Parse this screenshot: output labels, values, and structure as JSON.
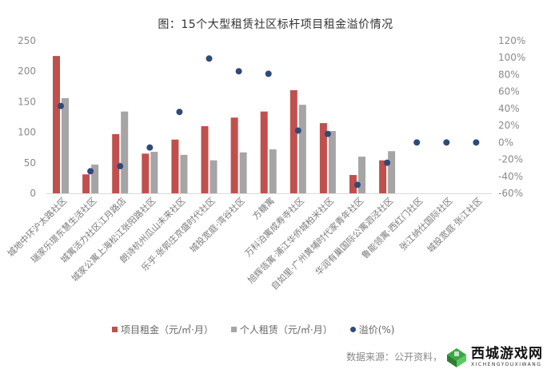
{
  "chart_data": {
    "type": "bar",
    "title": "图：15个大型租赁社区标杆项目租金溢价情况",
    "categories": [
      "城地中环沪太路社区",
      "瑞家乐璟东慧生活社区",
      "城寓活力社区江月路店",
      "城家公寓上海松江张阳路社区",
      "朗诗杭州瓜山未来社区",
      "乐乎·张郭庄京盛时代社区",
      "城投宽庭·湾谷社区",
      "方糖寓",
      "万科泊寓成寿寺社区",
      "旭辉瓴寓·浦江华侨城柏米社区",
      "自如里·广州黄埔时代家青年社区",
      "华润有巢国际公寓泗泾社区",
      "鲁能领寓·西红门社区",
      "张江纳仕国际社区",
      "城投宽庭·张江社区"
    ],
    "series": [
      {
        "name": "项目租金（元/㎡·月）",
        "type": "bar",
        "axis": "left",
        "color": "#c0504d",
        "values": [
          225,
          31,
          97,
          65,
          88,
          110,
          124,
          134,
          169,
          115,
          30,
          54,
          0,
          0,
          0
        ]
      },
      {
        "name": "个人租赁（元/㎡·月）",
        "type": "bar",
        "axis": "left",
        "color": "#a5a5a5",
        "values": [
          156,
          47,
          134,
          68,
          63,
          54,
          67,
          72,
          145,
          102,
          60,
          69,
          0,
          0,
          0
        ]
      },
      {
        "name": "溢价(%)",
        "type": "scatter",
        "axis": "right",
        "color": "#2f4a7a",
        "values": [
          43,
          -34,
          -28,
          -6,
          36,
          99,
          84,
          81,
          14,
          10,
          -50,
          -24,
          0,
          0,
          0
        ]
      }
    ],
    "xlabel": "",
    "ylabel": "",
    "ylim": [
      0,
      250
    ],
    "yticks": [
      "0",
      "50",
      "100",
      "150",
      "200",
      "250"
    ],
    "y2lim": [
      -60,
      120
    ],
    "y2ticks": [
      "-60%",
      "-40%",
      "-20%",
      "0%",
      "20%",
      "40%",
      "60%",
      "80%",
      "100%",
      "120%"
    ],
    "grid": false,
    "legend_position": "bottom"
  },
  "legend": {
    "rent": "项目租金（元/㎡·月）",
    "personal": "个人租赁（元/㎡·月）",
    "premium": "溢价(%)"
  },
  "source": "数据来源：公开资料，",
  "watermark": {
    "main": "西城游戏网",
    "sub": "XICHENGYOUXIWANG"
  }
}
